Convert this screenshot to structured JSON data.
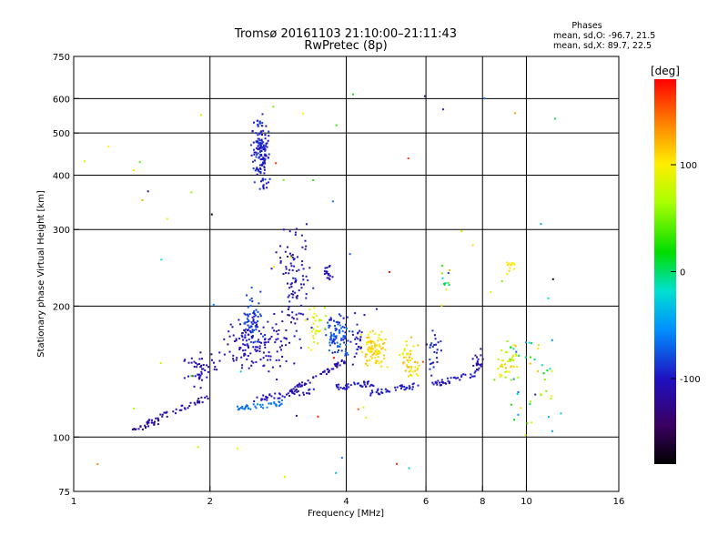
{
  "chart_data": {
    "type": "scatter",
    "title": "Tromsø 20161103 21:10:00–21:11:43",
    "subtitle": "RwPretec (8p)",
    "xlabel": "Frequency [MHz]",
    "ylabel": "Stationary phase Virtual Height [km]",
    "x_scale": "log",
    "y_scale": "log",
    "xlim": [
      1,
      16
    ],
    "ylim": [
      75,
      750
    ],
    "x_ticks": [
      1,
      2,
      4,
      6,
      8,
      10,
      16
    ],
    "x_tick_labels": [
      "1",
      "2",
      "4",
      "6",
      "8",
      "10",
      "16"
    ],
    "y_ticks": [
      75,
      100,
      200,
      300,
      400,
      500,
      600,
      750
    ],
    "y_tick_labels": [
      "75",
      "100",
      "200",
      "300",
      "400",
      "500",
      "600",
      "750"
    ],
    "grid_x": [
      2,
      4,
      6,
      8,
      10
    ],
    "grid_y": [
      100,
      200,
      300,
      400,
      500,
      600
    ],
    "stats": {
      "heading": "Phases",
      "line_o": "mean, sd,O: -96.7, 21.5",
      "line_x": "mean, sd,X:  89.7, 22.5"
    },
    "colorbar": {
      "label": "[deg]",
      "range": [
        -180,
        180
      ],
      "ticks": [
        100,
        0,
        -100
      ],
      "tick_labels": [
        "100",
        "0",
        "-100"
      ]
    },
    "clusters": [
      {
        "f": [
          2.45,
          2.75
        ],
        "h": [
          350,
          580
        ],
        "phase": [
          -110,
          -80
        ],
        "n": 150,
        "shape": "blob"
      },
      {
        "f": [
          1.35,
          1.55
        ],
        "h": [
          104,
          108
        ],
        "phase": [
          -125,
          -115
        ],
        "n": 22,
        "shape": "trace"
      },
      {
        "f": [
          1.45,
          2.0
        ],
        "h": [
          108,
          124
        ],
        "phase": [
          -120,
          -105
        ],
        "n": 45,
        "shape": "trace"
      },
      {
        "f": [
          1.7,
          2.15
        ],
        "h": [
          125,
          165
        ],
        "phase": [
          -115,
          -100
        ],
        "n": 50,
        "shape": "blob"
      },
      {
        "f": [
          2.0,
          3.2
        ],
        "h": [
          130,
          200
        ],
        "phase": [
          -112,
          -95
        ],
        "n": 140,
        "shape": "blob"
      },
      {
        "f": [
          2.3,
          2.65
        ],
        "h": [
          150,
          230
        ],
        "phase": [
          -95,
          -70
        ],
        "n": 60,
        "shape": "blob"
      },
      {
        "f": [
          2.7,
          3.5
        ],
        "h": [
          150,
          345
        ],
        "phase": [
          -120,
          -90
        ],
        "n": 100,
        "shape": "blob"
      },
      {
        "f": [
          2.3,
          2.9
        ],
        "h": [
          116,
          120
        ],
        "phase": [
          -70,
          -55
        ],
        "n": 40,
        "shape": "trace"
      },
      {
        "f": [
          2.5,
          3.4
        ],
        "h": [
          122,
          128
        ],
        "phase": [
          -110,
          -95
        ],
        "n": 40,
        "shape": "trace"
      },
      {
        "f": [
          3.0,
          4.0
        ],
        "h": [
          127,
          150
        ],
        "phase": [
          -118,
          -100
        ],
        "n": 55,
        "shape": "trace"
      },
      {
        "f": [
          3.55,
          3.75
        ],
        "h": [
          220,
          255
        ],
        "phase": [
          -110,
          -95
        ],
        "n": 18,
        "shape": "blob"
      },
      {
        "f": [
          3.5,
          4.2
        ],
        "h": [
          145,
          205
        ],
        "phase": [
          -100,
          -60
        ],
        "n": 90,
        "shape": "blob"
      },
      {
        "f": [
          3.2,
          3.7
        ],
        "h": [
          150,
          210
        ],
        "phase": [
          60,
          110
        ],
        "n": 30,
        "shape": "blob"
      },
      {
        "f": [
          3.8,
          4.6
        ],
        "h": [
          130,
          133
        ],
        "phase": [
          -105,
          -90
        ],
        "n": 40,
        "shape": "trace"
      },
      {
        "f": [
          4.2,
          5.1
        ],
        "h": [
          140,
          180
        ],
        "phase": [
          95,
          120
        ],
        "n": 90,
        "shape": "blob"
      },
      {
        "f": [
          4.1,
          4.4
        ],
        "h": [
          140,
          200
        ],
        "phase": [
          -110,
          -90
        ],
        "n": 25,
        "shape": "blob"
      },
      {
        "f": [
          5.1,
          6.0
        ],
        "h": [
          130,
          175
        ],
        "phase": [
          85,
          125
        ],
        "n": 50,
        "shape": "blob"
      },
      {
        "f": [
          4.5,
          5.8
        ],
        "h": [
          126,
          132
        ],
        "phase": [
          -105,
          -90
        ],
        "n": 40,
        "shape": "trace"
      },
      {
        "f": [
          6.0,
          6.6
        ],
        "h": [
          135,
          190
        ],
        "phase": [
          -100,
          -80
        ],
        "n": 25,
        "shape": "blob"
      },
      {
        "f": [
          6.2,
          7.8
        ],
        "h": [
          132,
          140
        ],
        "phase": [
          -110,
          -90
        ],
        "n": 40,
        "shape": "trace"
      },
      {
        "f": [
          7.5,
          8.2
        ],
        "h": [
          135,
          170
        ],
        "phase": [
          -115,
          -95
        ],
        "n": 20,
        "shape": "blob"
      },
      {
        "f": [
          8.3,
          10.0
        ],
        "h": [
          125,
          175
        ],
        "phase": [
          40,
          120
        ],
        "n": 40,
        "shape": "blob"
      },
      {
        "f": [
          8.8,
          9.6
        ],
        "h": [
          235,
          260
        ],
        "phase": [
          90,
          120
        ],
        "n": 12,
        "shape": "blob"
      },
      {
        "f": [
          9.0,
          12.0
        ],
        "h": [
          100,
          170
        ],
        "phase": [
          -100,
          140
        ],
        "n": 45,
        "shape": "scatter"
      },
      {
        "f": [
          6.4,
          6.9
        ],
        "h": [
          200,
          250
        ],
        "phase": [
          -90,
          120
        ],
        "n": 12,
        "shape": "scatter"
      },
      {
        "f": [
          1.05,
          12.0
        ],
        "h": [
          78,
          620
        ],
        "phase": [
          -180,
          180
        ],
        "n": 60,
        "shape": "scatter"
      }
    ]
  }
}
